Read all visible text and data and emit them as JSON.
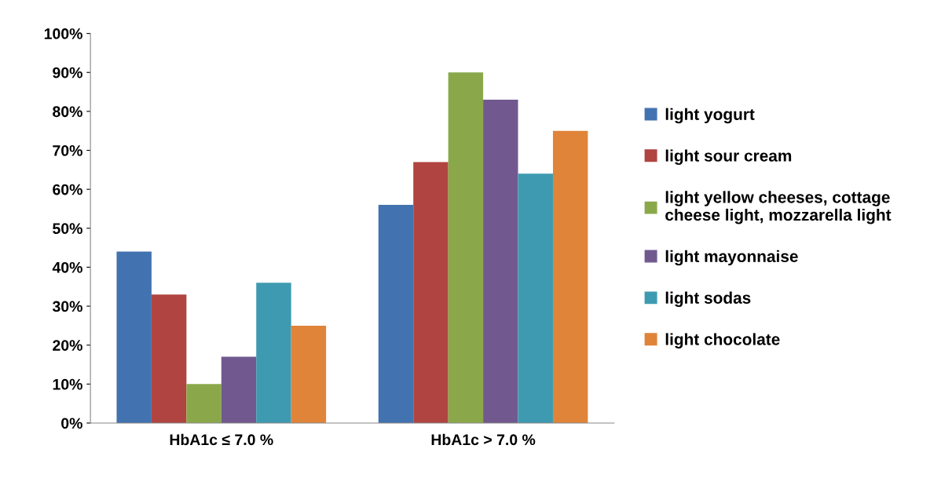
{
  "chart_data": {
    "type": "bar",
    "categories": [
      "HbA1c ≤ 7.0 %",
      "HbA1c > 7.0 %"
    ],
    "series": [
      {
        "name": "light yogurt",
        "color": "#4273b0",
        "values": [
          44,
          56
        ]
      },
      {
        "name": "light sour cream",
        "color": "#b04440",
        "values": [
          33,
          67
        ]
      },
      {
        "name": "light yellow cheeses, cottage\ncheese light, mozzarella light",
        "color": "#8aa84a",
        "values": [
          10,
          90
        ]
      },
      {
        "name": "light mayonnaise",
        "color": "#71598f",
        "values": [
          17,
          83
        ]
      },
      {
        "name": "light sodas",
        "color": "#3e9ab0",
        "values": [
          36,
          64
        ]
      },
      {
        "name": "light chocolate",
        "color": "#e0843a",
        "values": [
          25,
          75
        ]
      }
    ],
    "ylim": [
      0,
      100
    ],
    "yticks": [
      {
        "value": 0,
        "label": "0%"
      },
      {
        "value": 10,
        "label": "10%"
      },
      {
        "value": 20,
        "label": "20%"
      },
      {
        "value": 30,
        "label": "30%"
      },
      {
        "value": 40,
        "label": "40%"
      },
      {
        "value": 50,
        "label": "50%"
      },
      {
        "value": 60,
        "label": "60%"
      },
      {
        "value": 70,
        "label": "70%"
      },
      {
        "value": 80,
        "label": "80%"
      },
      {
        "value": 90,
        "label": "90%"
      },
      {
        "value": 100,
        "label": "100%"
      }
    ],
    "grid": false,
    "legend": "right"
  }
}
